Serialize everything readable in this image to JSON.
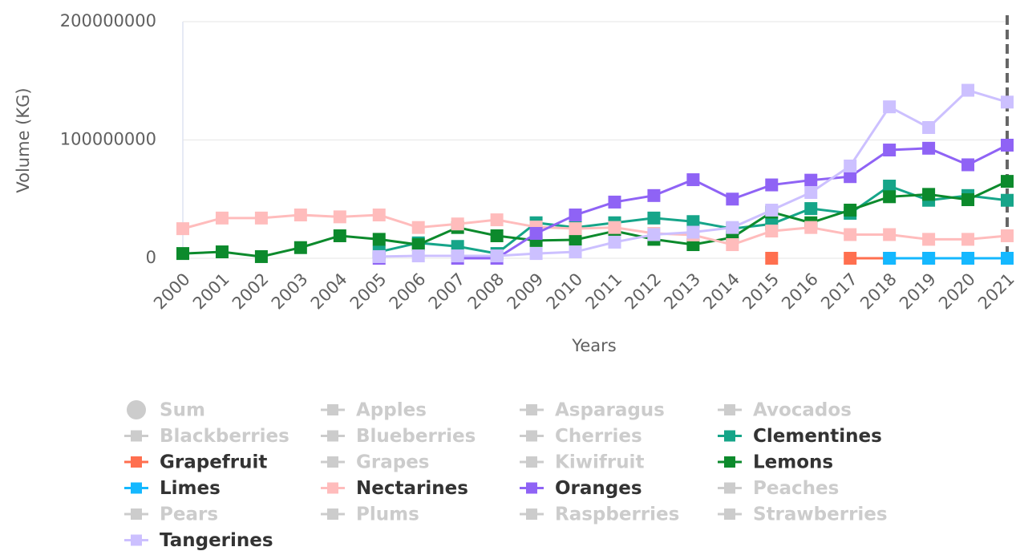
{
  "chart_data": {
    "type": "line",
    "y_axis_label": "Volume (KG)",
    "x_axis_label": "Years",
    "categories": [
      "2000",
      "2001",
      "2002",
      "2003",
      "2004",
      "2005",
      "2006",
      "2007",
      "2008",
      "2009",
      "2010",
      "2011",
      "2012",
      "2013",
      "2014",
      "2015",
      "2016",
      "2017",
      "2018",
      "2019",
      "2020",
      "2021"
    ],
    "ylim": [
      0,
      200000000
    ],
    "yticks": [
      0,
      100000000,
      200000000
    ],
    "grid": true,
    "crosshair_category": "2021",
    "series": [
      {
        "name": "Sum",
        "color": "#cccccc",
        "visible": false,
        "symbol": "circle"
      },
      {
        "name": "Apples",
        "color": "#cccccc",
        "visible": false
      },
      {
        "name": "Asparagus",
        "color": "#cccccc",
        "visible": false
      },
      {
        "name": "Avocados",
        "color": "#cccccc",
        "visible": false
      },
      {
        "name": "Blackberries",
        "color": "#cccccc",
        "visible": false
      },
      {
        "name": "Blueberries",
        "color": "#cccccc",
        "visible": false
      },
      {
        "name": "Cherries",
        "color": "#cccccc",
        "visible": false
      },
      {
        "name": "Clementines",
        "color": "#16a589",
        "visible": true,
        "values": [
          null,
          null,
          null,
          null,
          null,
          5400000,
          13000000,
          10000000,
          4000000,
          30000000,
          26000000,
          30000000,
          34000000,
          31000000,
          25000000,
          29000000,
          42000000,
          38000000,
          61000000,
          49000000,
          53000000,
          49000000
        ]
      },
      {
        "name": "Grapefruit",
        "color": "#ff6f4f",
        "visible": true,
        "values": [
          null,
          null,
          null,
          null,
          null,
          null,
          null,
          null,
          null,
          null,
          null,
          null,
          null,
          null,
          null,
          0,
          null,
          0,
          0,
          0,
          0,
          0
        ]
      },
      {
        "name": "Grapes",
        "color": "#cccccc",
        "visible": false
      },
      {
        "name": "Kiwifruit",
        "color": "#cccccc",
        "visible": false
      },
      {
        "name": "Lemons",
        "color": "#0c8a2c",
        "visible": true,
        "values": [
          4000000,
          5400000,
          1400000,
          9000000,
          19000000,
          16000000,
          11500000,
          26000000,
          19000000,
          15000000,
          15600000,
          23000000,
          16000000,
          11500000,
          17600000,
          39000000,
          30000000,
          40700000,
          52000000,
          54000000,
          49500000,
          65000000
        ]
      },
      {
        "name": "Limes",
        "color": "#14b8ff",
        "visible": true,
        "values": [
          null,
          null,
          null,
          null,
          null,
          null,
          null,
          null,
          null,
          null,
          null,
          null,
          null,
          null,
          null,
          null,
          null,
          null,
          0,
          0,
          0,
          0
        ]
      },
      {
        "name": "Nectarines",
        "color": "#ffbcbc",
        "visible": true,
        "values": [
          25000000,
          34000000,
          34000000,
          36600000,
          35000000,
          36600000,
          26000000,
          29000000,
          32500000,
          26400000,
          25000000,
          26000000,
          21000000,
          19700000,
          11500000,
          23000000,
          26000000,
          20000000,
          20000000,
          16000000,
          16000000,
          19000000
        ]
      },
      {
        "name": "Oranges",
        "color": "#8f63f5",
        "visible": true,
        "values": [
          null,
          null,
          null,
          null,
          null,
          0,
          null,
          0,
          0,
          21000000,
          36600000,
          47500000,
          53000000,
          66400000,
          50000000,
          62000000,
          66000000,
          69000000,
          91500000,
          93000000,
          79000000,
          95600000
        ]
      },
      {
        "name": "Peaches",
        "color": "#cccccc",
        "visible": false
      },
      {
        "name": "Pears",
        "color": "#cccccc",
        "visible": false
      },
      {
        "name": "Plums",
        "color": "#cccccc",
        "visible": false
      },
      {
        "name": "Raspberries",
        "color": "#cccccc",
        "visible": false
      },
      {
        "name": "Strawberries",
        "color": "#cccccc",
        "visible": false
      },
      {
        "name": "Tangerines",
        "color": "#ccc0ff",
        "visible": true,
        "values": [
          null,
          null,
          null,
          null,
          null,
          1400000,
          2000000,
          2000000,
          2000000,
          4000000,
          5400000,
          13600000,
          20000000,
          22000000,
          26000000,
          40700000,
          55600000,
          78000000,
          128000000,
          110500000,
          142000000,
          132000000
        ]
      }
    ]
  }
}
